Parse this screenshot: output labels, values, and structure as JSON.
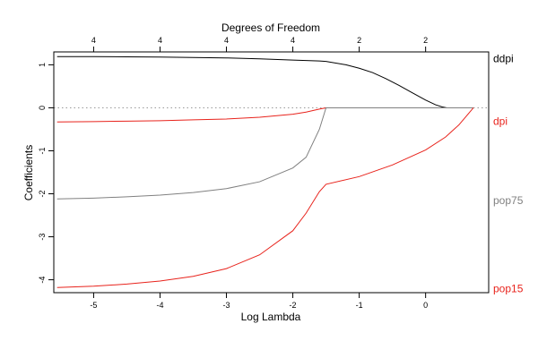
{
  "chart_data": {
    "type": "line",
    "title": "",
    "top_axis_label": "Degrees of Freedom",
    "xlabel": "Log Lambda",
    "ylabel": "Coefficients",
    "xlim": [
      -5.6,
      0.95
    ],
    "ylim": [
      -4.3,
      1.3
    ],
    "x_ticks": [
      -5,
      -4,
      -3,
      -2,
      -1,
      0
    ],
    "y_ticks": [
      1,
      0,
      -1,
      -2,
      -3,
      -4
    ],
    "top_ticks": [
      {
        "x": -5,
        "label": "4"
      },
      {
        "x": -4,
        "label": "4"
      },
      {
        "x": -3,
        "label": "4"
      },
      {
        "x": -2,
        "label": "4"
      },
      {
        "x": -1,
        "label": "2"
      },
      {
        "x": 0,
        "label": "2"
      }
    ],
    "zero_line": true,
    "series": [
      {
        "name": "ddpi",
        "color": "#000000",
        "x": [
          -5.55,
          -5.0,
          -4.5,
          -4.0,
          -3.5,
          -3.0,
          -2.5,
          -2.0,
          -1.6,
          -1.5,
          -1.2,
          -1.0,
          -0.8,
          -0.6,
          -0.4,
          -0.2,
          0.0,
          0.15,
          0.25,
          0.32,
          0.4,
          0.72
        ],
        "y": [
          1.19,
          1.19,
          1.185,
          1.18,
          1.17,
          1.16,
          1.14,
          1.11,
          1.09,
          1.08,
          1.0,
          0.92,
          0.82,
          0.68,
          0.52,
          0.35,
          0.18,
          0.07,
          0.02,
          0.0,
          0.0,
          0.0
        ]
      },
      {
        "name": "dpi",
        "color": "#e8231c",
        "x": [
          -5.55,
          -5.0,
          -4.5,
          -4.0,
          -3.5,
          -3.0,
          -2.5,
          -2.0,
          -1.8,
          -1.6,
          -1.5,
          -1.0,
          0.0,
          0.72
        ],
        "y": [
          -0.33,
          -0.32,
          -0.31,
          -0.3,
          -0.28,
          -0.26,
          -0.22,
          -0.15,
          -0.1,
          -0.03,
          0.0,
          0.0,
          0.0,
          0.0
        ]
      },
      {
        "name": "pop75",
        "color": "#808080",
        "x": [
          -5.55,
          -5.0,
          -4.5,
          -4.0,
          -3.5,
          -3.0,
          -2.5,
          -2.0,
          -1.8,
          -1.6,
          -1.5,
          -1.0,
          0.0,
          0.72
        ],
        "y": [
          -2.12,
          -2.1,
          -2.07,
          -2.03,
          -1.97,
          -1.88,
          -1.72,
          -1.4,
          -1.15,
          -0.5,
          0.0,
          0.0,
          0.0,
          0.0
        ]
      },
      {
        "name": "pop15",
        "color": "#e8231c",
        "x": [
          -5.55,
          -5.0,
          -4.5,
          -4.0,
          -3.5,
          -3.0,
          -2.5,
          -2.0,
          -1.8,
          -1.6,
          -1.5,
          -1.0,
          -0.5,
          0.0,
          0.3,
          0.5,
          0.72
        ],
        "y": [
          -4.18,
          -4.15,
          -4.1,
          -4.03,
          -3.92,
          -3.74,
          -3.42,
          -2.86,
          -2.45,
          -1.95,
          -1.78,
          -1.6,
          -1.33,
          -0.98,
          -0.68,
          -0.4,
          0.0
        ]
      }
    ],
    "labels": [
      {
        "name": "ddpi",
        "y": 1.15,
        "color": "#000000"
      },
      {
        "name": "dpi",
        "y": -0.31,
        "color": "#e8231c"
      },
      {
        "name": "pop75",
        "y": -2.15,
        "color": "#808080"
      },
      {
        "name": "pop15",
        "y": -4.2,
        "color": "#e8231c"
      }
    ]
  }
}
